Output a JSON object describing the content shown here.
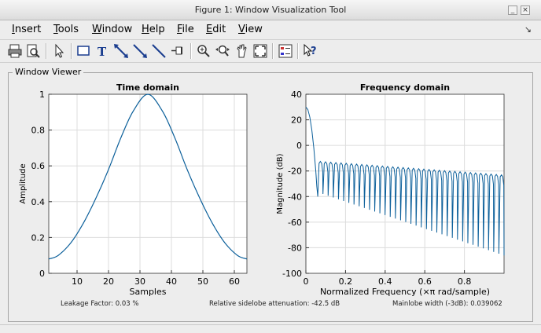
{
  "window": {
    "title": "Figure 1: Window Visualization Tool"
  },
  "menu": [
    {
      "label": "Insert",
      "underline": "I",
      "rest": "nsert"
    },
    {
      "label": "Tools",
      "underline": "T",
      "rest": "ools"
    },
    {
      "label": "Window",
      "underline": "W",
      "rest": "indow"
    },
    {
      "label": "Help",
      "underline": "H",
      "rest": "elp"
    },
    {
      "label": "File",
      "underline": "F",
      "rest": "ile"
    },
    {
      "label": "Edit",
      "underline": "E",
      "rest": "dit"
    },
    {
      "label": "View",
      "underline": "V",
      "rest": "iew"
    }
  ],
  "toolbar": [
    "print-icon",
    "print-preview-icon",
    "select-arrow-icon",
    "rectangle-icon",
    "text-icon",
    "double-arrow-icon",
    "arrow-icon",
    "line-icon",
    "pin-icon",
    "zoom-in-icon",
    "zoom-out-icon",
    "pan-icon",
    "zoom-fit-icon",
    "legend-icon",
    "whats-this-icon"
  ],
  "panel": {
    "title": "Window Viewer"
  },
  "footer": {
    "leakage": "Leakage Factor: 0.03 %",
    "sidelobe": "Relative sidelobe attenuation: -42.5 dB",
    "mainlobe": "Mainlobe width (-3dB): 0.039062"
  },
  "chart_data": [
    {
      "type": "line",
      "title": "Time domain",
      "xlabel": "Samples",
      "ylabel": "Amplitude",
      "xlim": [
        1,
        64
      ],
      "ylim": [
        0,
        1
      ],
      "xticks": [
        10,
        20,
        30,
        40,
        50,
        60
      ],
      "yticks": [
        0,
        0.2,
        0.4,
        0.6,
        0.8,
        1
      ],
      "grid": true,
      "series": [
        {
          "x": [
            1,
            4,
            8,
            12,
            16,
            20,
            24,
            28,
            32.5,
            37,
            41,
            45,
            49,
            53,
            57,
            61,
            64
          ],
          "y": [
            0.08,
            0.1,
            0.17,
            0.28,
            0.42,
            0.58,
            0.76,
            0.91,
            1.0,
            0.91,
            0.76,
            0.58,
            0.42,
            0.28,
            0.17,
            0.1,
            0.08
          ]
        }
      ]
    },
    {
      "type": "line",
      "title": "Frequency domain",
      "xlabel": "Normalized Frequency  (×π rad/sample)",
      "ylabel": "Magnitude (dB)",
      "xlim": [
        0,
        1
      ],
      "ylim": [
        -100,
        40
      ],
      "xticks": [
        0,
        0.2,
        0.4,
        0.6,
        0.8
      ],
      "yticks": [
        -100,
        -80,
        -60,
        -40,
        -20,
        0,
        20,
        40
      ],
      "grid": true,
      "series": [
        {
          "mainlobe_x": [
            0,
            0.01,
            0.02,
            0.03,
            0.04,
            0.05,
            0.055,
            0.06
          ],
          "mainlobe_y": [
            30,
            28,
            22,
            12,
            -2,
            -20,
            -32,
            -40
          ],
          "sidelobe_peak_start": -12.5,
          "sidelobe_peak_end": -23,
          "sidelobe_count": 36
        }
      ]
    }
  ]
}
